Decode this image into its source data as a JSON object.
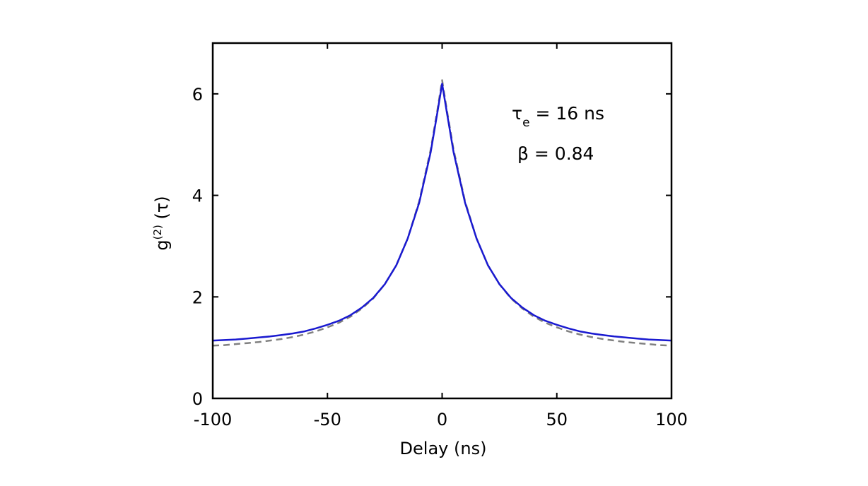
{
  "chart_data": {
    "type": "line",
    "title": "",
    "xlabel": "Delay (ns)",
    "ylabel": {
      "main": "g",
      "sup": "(2)",
      "rest": " (τ)"
    },
    "xlim": [
      -100,
      100
    ],
    "ylim": [
      0,
      7
    ],
    "x_ticks": [
      -100,
      -50,
      0,
      50,
      100
    ],
    "y_ticks": [
      0,
      2,
      4,
      6
    ],
    "grid": false,
    "legend": "none",
    "series": [
      {
        "style": "solid",
        "color": "#1a1ad0",
        "points": [
          [
            -100,
            1.14
          ],
          [
            -95,
            1.15
          ],
          [
            -90,
            1.16
          ],
          [
            -85,
            1.18
          ],
          [
            -80,
            1.2
          ],
          [
            -75,
            1.22
          ],
          [
            -70,
            1.25
          ],
          [
            -65,
            1.28
          ],
          [
            -60,
            1.32
          ],
          [
            -55,
            1.38
          ],
          [
            -50,
            1.45
          ],
          [
            -45,
            1.53
          ],
          [
            -40,
            1.64
          ],
          [
            -35,
            1.79
          ],
          [
            -30,
            1.98
          ],
          [
            -25,
            2.25
          ],
          [
            -20,
            2.62
          ],
          [
            -15,
            3.15
          ],
          [
            -10,
            3.85
          ],
          [
            -5,
            4.85
          ],
          [
            -2,
            5.65
          ],
          [
            0,
            6.2
          ],
          [
            2,
            5.65
          ],
          [
            5,
            4.85
          ],
          [
            10,
            3.85
          ],
          [
            15,
            3.15
          ],
          [
            20,
            2.62
          ],
          [
            25,
            2.25
          ],
          [
            30,
            1.98
          ],
          [
            35,
            1.79
          ],
          [
            40,
            1.64
          ],
          [
            45,
            1.53
          ],
          [
            50,
            1.45
          ],
          [
            55,
            1.38
          ],
          [
            60,
            1.32
          ],
          [
            65,
            1.28
          ],
          [
            70,
            1.25
          ],
          [
            75,
            1.22
          ],
          [
            80,
            1.2
          ],
          [
            85,
            1.18
          ],
          [
            90,
            1.16
          ],
          [
            95,
            1.15
          ],
          [
            100,
            1.14
          ]
        ]
      },
      {
        "style": "dashed",
        "color": "#808080",
        "points": [
          [
            -100,
            1.04
          ],
          [
            -95,
            1.05
          ],
          [
            -90,
            1.07
          ],
          [
            -85,
            1.09
          ],
          [
            -80,
            1.11
          ],
          [
            -75,
            1.14
          ],
          [
            -70,
            1.17
          ],
          [
            -65,
            1.21
          ],
          [
            -60,
            1.26
          ],
          [
            -55,
            1.32
          ],
          [
            -50,
            1.4
          ],
          [
            -45,
            1.49
          ],
          [
            -40,
            1.61
          ],
          [
            -35,
            1.77
          ],
          [
            -30,
            1.97
          ],
          [
            -25,
            2.25
          ],
          [
            -20,
            2.62
          ],
          [
            -15,
            3.15
          ],
          [
            -10,
            3.88
          ],
          [
            -5,
            4.9
          ],
          [
            -2,
            5.7
          ],
          [
            0,
            6.27
          ],
          [
            2,
            5.7
          ],
          [
            5,
            4.9
          ],
          [
            10,
            3.88
          ],
          [
            15,
            3.15
          ],
          [
            20,
            2.62
          ],
          [
            25,
            2.25
          ],
          [
            30,
            1.97
          ],
          [
            35,
            1.77
          ],
          [
            40,
            1.61
          ],
          [
            45,
            1.49
          ],
          [
            50,
            1.4
          ],
          [
            55,
            1.32
          ],
          [
            60,
            1.26
          ],
          [
            65,
            1.21
          ],
          [
            70,
            1.17
          ],
          [
            75,
            1.14
          ],
          [
            80,
            1.11
          ],
          [
            85,
            1.09
          ],
          [
            90,
            1.07
          ],
          [
            95,
            1.05
          ],
          [
            100,
            1.04
          ]
        ]
      }
    ],
    "annotations": [
      {
        "symbol": "τ",
        "sub": "e",
        "rest": " = 16 ns"
      },
      {
        "text": "β = 0.84"
      }
    ]
  }
}
